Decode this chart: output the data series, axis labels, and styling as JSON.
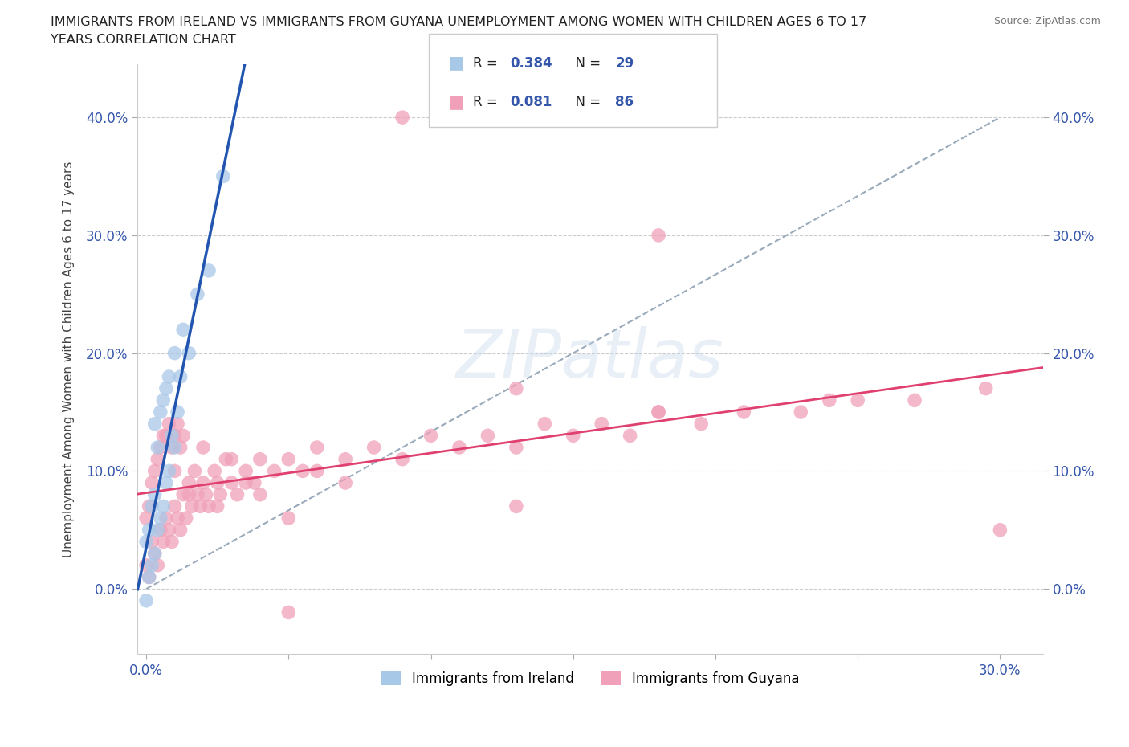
{
  "title_line1": "IMMIGRANTS FROM IRELAND VS IMMIGRANTS FROM GUYANA UNEMPLOYMENT AMONG WOMEN WITH CHILDREN AGES 6 TO 17",
  "title_line2": "YEARS CORRELATION CHART",
  "source": "Source: ZipAtlas.com",
  "ylabel": "Unemployment Among Women with Children Ages 6 to 17 years",
  "xlim": [
    -0.003,
    0.315
  ],
  "ylim": [
    -0.055,
    0.445
  ],
  "xticks": [
    0.0,
    0.05,
    0.1,
    0.15,
    0.2,
    0.25,
    0.3
  ],
  "yticks": [
    0.0,
    0.1,
    0.2,
    0.3,
    0.4
  ],
  "xtick_labels": [
    "0.0%",
    "",
    "",
    "",
    "",
    "",
    "30.0%"
  ],
  "ytick_labels": [
    "0.0%",
    "10.0%",
    "20.0%",
    "30.0%",
    "40.0%"
  ],
  "ireland_fill": "#a8c8e8",
  "guyana_fill": "#f0a0b8",
  "ireland_line_color": "#2255b0",
  "guyana_line_color": "#e04070",
  "diagonal_color": "#99aabb",
  "tick_color": "#3355aa",
  "R_ireland": 0.384,
  "N_ireland": 29,
  "R_guyana": 0.081,
  "N_guyana": 86,
  "ireland_x": [
    0.0,
    0.0,
    0.001,
    0.001,
    0.002,
    0.002,
    0.003,
    0.003,
    0.003,
    0.004,
    0.004,
    0.005,
    0.005,
    0.006,
    0.006,
    0.007,
    0.007,
    0.008,
    0.008,
    0.009,
    0.01,
    0.01,
    0.011,
    0.012,
    0.013,
    0.015,
    0.018,
    0.022,
    0.027
  ],
  "ireland_y": [
    -0.01,
    0.04,
    0.01,
    0.05,
    0.02,
    0.07,
    0.03,
    0.08,
    0.14,
    0.05,
    0.12,
    0.06,
    0.15,
    0.07,
    0.16,
    0.09,
    0.17,
    0.1,
    0.18,
    0.13,
    0.12,
    0.2,
    0.15,
    0.18,
    0.22,
    0.2,
    0.25,
    0.27,
    0.35
  ],
  "guyana_x": [
    0.0,
    0.0,
    0.001,
    0.001,
    0.002,
    0.002,
    0.003,
    0.003,
    0.004,
    0.004,
    0.005,
    0.005,
    0.006,
    0.006,
    0.007,
    0.007,
    0.008,
    0.008,
    0.009,
    0.009,
    0.01,
    0.01,
    0.011,
    0.011,
    0.012,
    0.012,
    0.013,
    0.013,
    0.014,
    0.015,
    0.016,
    0.017,
    0.018,
    0.019,
    0.02,
    0.021,
    0.022,
    0.024,
    0.025,
    0.026,
    0.028,
    0.03,
    0.032,
    0.035,
    0.038,
    0.04,
    0.045,
    0.05,
    0.055,
    0.06,
    0.07,
    0.08,
    0.09,
    0.1,
    0.11,
    0.12,
    0.13,
    0.14,
    0.15,
    0.16,
    0.17,
    0.18,
    0.195,
    0.21,
    0.23,
    0.25,
    0.27,
    0.01,
    0.015,
    0.02,
    0.025,
    0.03,
    0.035,
    0.04,
    0.05,
    0.06,
    0.07,
    0.13,
    0.18,
    0.24,
    0.295,
    0.3,
    0.18,
    0.05,
    0.09,
    0.13
  ],
  "guyana_y": [
    0.02,
    0.06,
    0.01,
    0.07,
    0.04,
    0.09,
    0.03,
    0.1,
    0.02,
    0.11,
    0.05,
    0.12,
    0.04,
    0.13,
    0.06,
    0.13,
    0.05,
    0.14,
    0.04,
    0.12,
    0.07,
    0.13,
    0.06,
    0.14,
    0.05,
    0.12,
    0.08,
    0.13,
    0.06,
    0.09,
    0.07,
    0.1,
    0.08,
    0.07,
    0.09,
    0.08,
    0.07,
    0.1,
    0.09,
    0.08,
    0.11,
    0.09,
    0.08,
    0.1,
    0.09,
    0.11,
    0.1,
    0.11,
    0.1,
    0.12,
    0.11,
    0.12,
    0.11,
    0.13,
    0.12,
    0.13,
    0.12,
    0.14,
    0.13,
    0.14,
    0.13,
    0.15,
    0.14,
    0.15,
    0.15,
    0.16,
    0.16,
    0.1,
    0.08,
    0.12,
    0.07,
    0.11,
    0.09,
    0.08,
    0.06,
    0.1,
    0.09,
    0.17,
    0.15,
    0.16,
    0.17,
    0.05,
    0.3,
    -0.02,
    0.4,
    0.07
  ]
}
